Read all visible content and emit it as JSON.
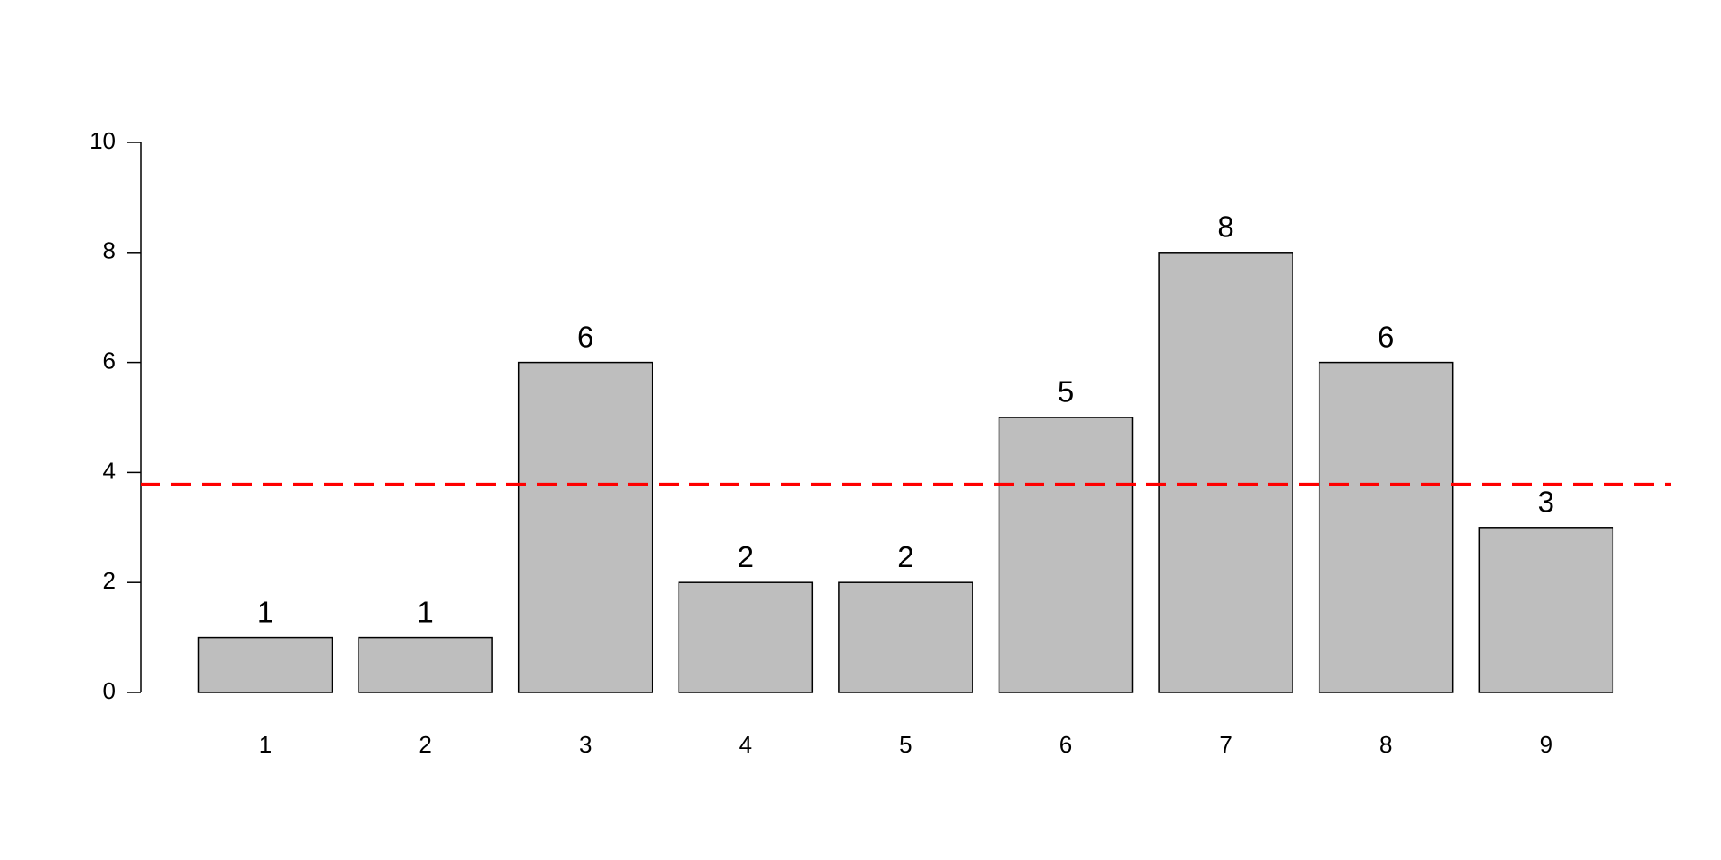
{
  "chart_data": {
    "type": "bar",
    "categories": [
      "1",
      "2",
      "3",
      "4",
      "5",
      "6",
      "7",
      "8",
      "9"
    ],
    "values": [
      1,
      1,
      6,
      2,
      2,
      5,
      8,
      6,
      3
    ],
    "color": "#bebebe",
    "ylim": [
      0,
      10
    ],
    "yticks": [
      0,
      2,
      4,
      6,
      8,
      10
    ],
    "grid": false,
    "reference_line": {
      "value": 3.78,
      "color": "#ff0000",
      "style": "dashed"
    }
  }
}
